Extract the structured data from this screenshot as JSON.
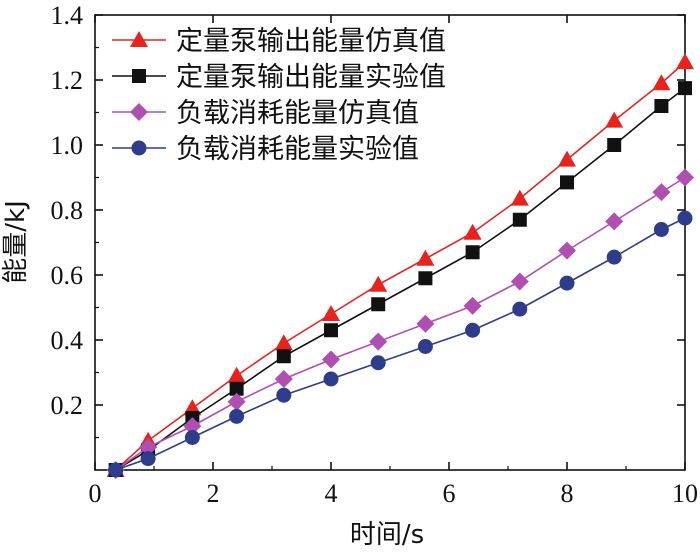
{
  "chart_data": {
    "type": "line",
    "title": "",
    "xlabel": "时间/s",
    "ylabel": "能量/kJ",
    "xlim": [
      0,
      10
    ],
    "ylim": [
      0,
      1.4
    ],
    "x_ticks": [
      0,
      2,
      4,
      6,
      8,
      10
    ],
    "x_tick_labels": [
      "0",
      "2",
      "4",
      "6",
      "8",
      "10"
    ],
    "y_ticks": [
      0.2,
      0.4,
      0.6,
      0.8,
      1.0,
      1.2,
      1.4
    ],
    "y_tick_labels": [
      "0.2",
      "0.4",
      "0.6",
      "0.8",
      "1.0",
      "1.2",
      "1.4"
    ],
    "grid": false,
    "legend_position": "top-left",
    "series": [
      {
        "name": "定量泵输出能量仿真值",
        "color": "#e8231d",
        "marker": "triangle",
        "x": [
          0.35,
          0.9,
          1.65,
          2.4,
          3.2,
          4.0,
          4.8,
          5.6,
          6.4,
          7.2,
          8.0,
          8.8,
          9.6,
          10.0
        ],
        "y": [
          0.0,
          0.09,
          0.19,
          0.29,
          0.39,
          0.48,
          0.57,
          0.65,
          0.73,
          0.835,
          0.955,
          1.075,
          1.19,
          1.255
        ]
      },
      {
        "name": "定量泵输出能量实验值",
        "color": "#111111",
        "marker": "square",
        "x": [
          0.35,
          0.9,
          1.65,
          2.4,
          3.2,
          4.0,
          4.8,
          5.6,
          6.4,
          7.2,
          8.0,
          8.8,
          9.6,
          10.0
        ],
        "y": [
          0.0,
          0.06,
          0.16,
          0.25,
          0.35,
          0.43,
          0.51,
          0.59,
          0.67,
          0.77,
          0.885,
          1.0,
          1.12,
          1.175
        ]
      },
      {
        "name": "负载消耗能量仿真值",
        "color": "#b04fb2",
        "marker": "diamond",
        "x": [
          0.35,
          0.9,
          1.65,
          2.4,
          3.2,
          4.0,
          4.8,
          5.6,
          6.4,
          7.2,
          8.0,
          8.8,
          9.6,
          10.0
        ],
        "y": [
          0.0,
          0.07,
          0.135,
          0.21,
          0.28,
          0.34,
          0.395,
          0.45,
          0.505,
          0.58,
          0.675,
          0.765,
          0.855,
          0.9
        ]
      },
      {
        "name": "负载消耗能量实验值",
        "color": "#2d3d8c",
        "marker": "circle",
        "x": [
          0.35,
          0.9,
          1.65,
          2.4,
          3.2,
          4.0,
          4.8,
          5.6,
          6.4,
          7.2,
          8.0,
          8.8,
          9.6,
          10.0
        ],
        "y": [
          0.0,
          0.035,
          0.1,
          0.165,
          0.23,
          0.28,
          0.33,
          0.38,
          0.43,
          0.495,
          0.575,
          0.655,
          0.74,
          0.775
        ]
      }
    ]
  }
}
